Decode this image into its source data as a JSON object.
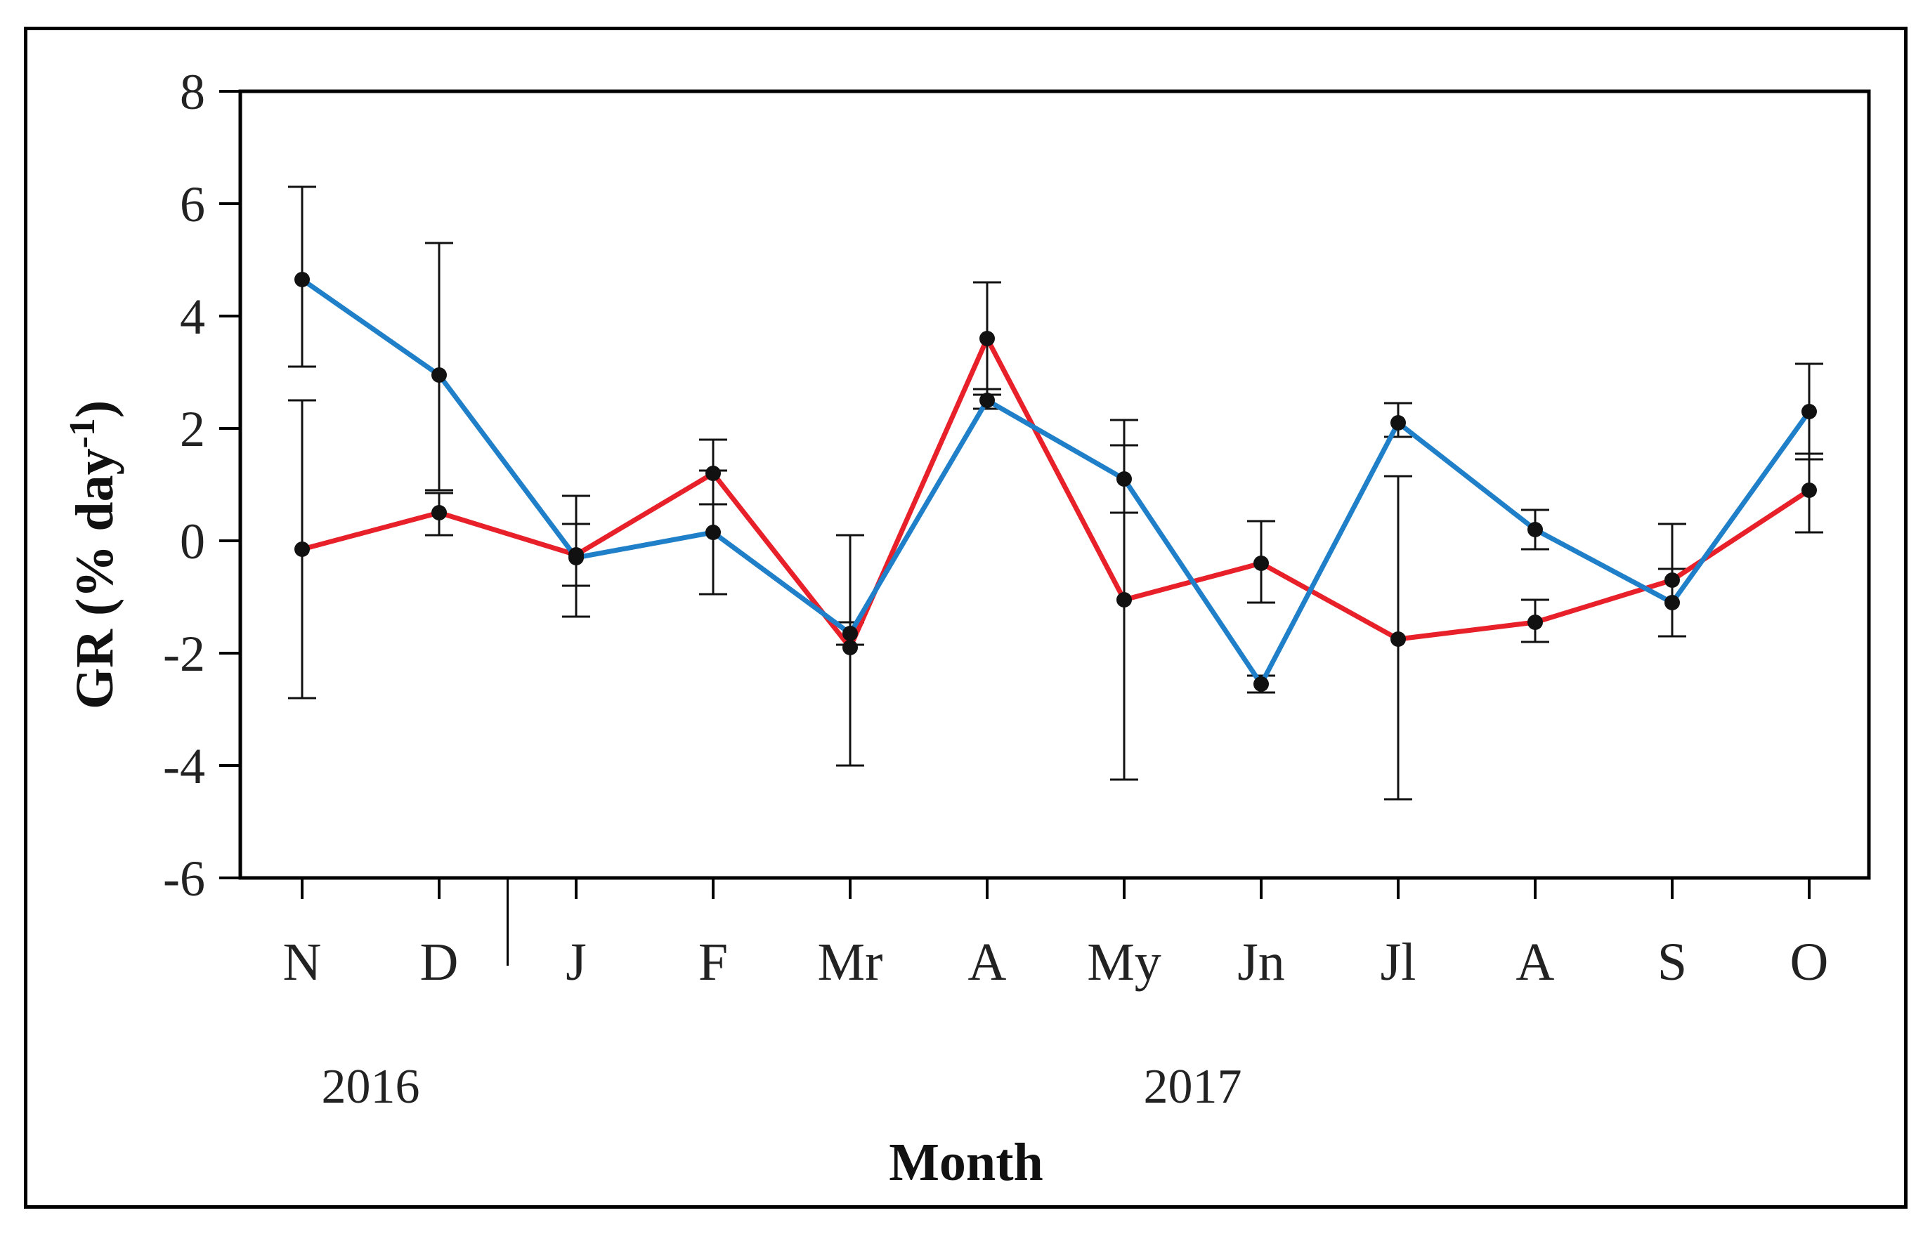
{
  "chart_data": {
    "type": "line",
    "title": "",
    "xlabel": "Month",
    "ylabel": "GR (% day -1)",
    "ylabel_main": "GR (% day",
    "ylabel_sup": "-1",
    "ylabel_close": ")",
    "ylim": [
      -6,
      8
    ],
    "yticks": [
      8,
      6,
      4,
      2,
      0,
      -2,
      -4,
      -6
    ],
    "ytick_labels": [
      "8",
      "6",
      "4",
      "2",
      "0",
      "-2",
      "-4",
      "-6"
    ],
    "categories": [
      "N",
      "D",
      "J",
      "F",
      "Mr",
      "A",
      "My",
      "Jn",
      "Jl",
      "A",
      "S",
      "O"
    ],
    "year_labels": [
      {
        "text": "2016",
        "category_index": 0.5
      },
      {
        "text": "2017",
        "category_index": 6.5
      }
    ],
    "year_divider_after_index": 1,
    "series": [
      {
        "name": "Red series",
        "color": "#e8202a",
        "values": [
          -0.15,
          0.5,
          -0.25,
          1.2,
          -1.9,
          3.6,
          -1.05,
          -0.4,
          -1.75,
          -1.45,
          -0.7,
          0.9
        ],
        "err_low": [
          -2.8,
          0.1,
          -0.8,
          0.65,
          -4.0,
          2.6,
          -4.25,
          -1.1,
          -4.6,
          -1.8,
          -1.7,
          0.15
        ],
        "err_high": [
          2.5,
          0.85,
          0.3,
          1.8,
          0.1,
          4.6,
          2.15,
          0.35,
          1.15,
          -1.05,
          0.3,
          1.55
        ]
      },
      {
        "name": "Blue series",
        "color": "#1f7fc8",
        "values": [
          4.65,
          2.95,
          -0.3,
          0.15,
          -1.65,
          2.5,
          1.1,
          -2.55,
          2.1,
          0.2,
          -1.1,
          2.3
        ],
        "err_low": [
          3.1,
          0.9,
          -1.35,
          -0.95,
          -1.85,
          2.35,
          0.5,
          -2.7,
          1.85,
          -0.15,
          -1.7,
          1.45
        ],
        "err_high": [
          6.3,
          5.3,
          0.8,
          1.25,
          -1.45,
          2.7,
          1.7,
          -2.4,
          2.45,
          0.55,
          -0.5,
          3.15
        ]
      }
    ]
  }
}
